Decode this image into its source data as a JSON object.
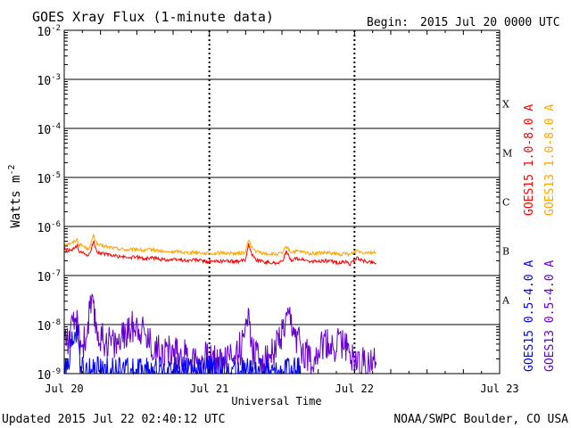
{
  "header": {
    "title": "GOES Xray Flux (1-minute data)",
    "begin_label": "Begin:",
    "begin_value": "2015 Jul 20 0000 UTC"
  },
  "footer": {
    "updated": "Updated 2015 Jul 22 02:40:12 UTC",
    "credit": "NOAA/SWPC Boulder, CO USA"
  },
  "colors": {
    "goes15_long": "#ff0000",
    "goes13_long": "#ffa500",
    "goes15_short": "#0000ff",
    "goes13_short": "#6600cc",
    "grid": "#000000",
    "background": "#ffffff"
  },
  "chart_data": {
    "type": "line",
    "title": "GOES Xray Flux (1-minute data)",
    "xlabel": "Universal Time",
    "ylabel_base": "Watts m",
    "ylabel_exponent": "-2",
    "y_scale": "log",
    "ylim": [
      1e-09,
      0.01
    ],
    "x_unit": "days since 2015 Jul 20 0000 UTC",
    "xlim": [
      0,
      3
    ],
    "x_ticks": [
      {
        "value": 0,
        "label": "Jul 20"
      },
      {
        "value": 1,
        "label": "Jul 21"
      },
      {
        "value": 2,
        "label": "Jul 22"
      },
      {
        "value": 3,
        "label": "Jul 23"
      }
    ],
    "y_ticks": [
      {
        "exp": -2,
        "base": "10",
        "sup": "-2"
      },
      {
        "exp": -3,
        "base": "10",
        "sup": "-3"
      },
      {
        "exp": -4,
        "base": "10",
        "sup": "-4"
      },
      {
        "exp": -5,
        "base": "10",
        "sup": "-5"
      },
      {
        "exp": -6,
        "base": "10",
        "sup": "-6"
      },
      {
        "exp": -7,
        "base": "10",
        "sup": "-7"
      },
      {
        "exp": -8,
        "base": "10",
        "sup": "-8"
      },
      {
        "exp": -9,
        "base": "10",
        "sup": "-9"
      }
    ],
    "flare_classes": [
      {
        "label": "X",
        "exp_low": -4
      },
      {
        "label": "M",
        "exp_low": -5
      },
      {
        "label": "C",
        "exp_low": -6
      },
      {
        "label": "B",
        "exp_low": -7
      },
      {
        "label": "A",
        "exp_low": -8
      }
    ],
    "grid": true,
    "legend": [
      {
        "name": "GOES15 1.0-8.0 A",
        "color_key": "goes15_long"
      },
      {
        "name": "GOES13 1.0-8.0 A",
        "color_key": "goes13_long"
      },
      {
        "name": "GOES15 0.5-4.0 A",
        "color_key": "goes15_short"
      },
      {
        "name": "GOES13 0.5-4.0 A",
        "color_key": "goes13_short"
      }
    ],
    "series": [
      {
        "name": "GOES13 1.0-8.0 A",
        "color_key": "goes13_long",
        "x": [
          0,
          0.05,
          0.09,
          0.1,
          0.12,
          0.16,
          0.18,
          0.2,
          0.23,
          0.27,
          0.35,
          0.45,
          0.5,
          0.55,
          0.6,
          0.7,
          0.8,
          0.85,
          0.9,
          1.0,
          1.1,
          1.2,
          1.25,
          1.27,
          1.29,
          1.32,
          1.38,
          1.45,
          1.5,
          1.53,
          1.56,
          1.6,
          1.65,
          1.7,
          1.8,
          1.9,
          1.94,
          1.97,
          2.02,
          2.05,
          2.1,
          2.15
        ],
        "y": [
          4.5e-07,
          4.5e-07,
          5.5e-07,
          4.3e-07,
          4.2e-07,
          3.5e-07,
          4e-07,
          6.6e-07,
          4.2e-07,
          4e-07,
          3.6e-07,
          3.3e-07,
          3.5e-07,
          3.2e-07,
          3.4e-07,
          3e-07,
          3.1e-07,
          2.9e-07,
          3e-07,
          2.8e-07,
          2.9e-07,
          2.8e-07,
          3e-07,
          5.5e-07,
          3.8e-07,
          3.1e-07,
          2.8e-07,
          2.7e-07,
          2.8e-07,
          3.9e-07,
          3e-07,
          3.1e-07,
          3e-07,
          2.8e-07,
          2.9e-07,
          2.7e-07,
          2.8e-07,
          2.7e-07,
          3.3e-07,
          3e-07,
          3e-07,
          2.9e-07
        ]
      },
      {
        "name": "GOES15 1.0-8.0 A",
        "color_key": "goes15_long",
        "x": [
          0,
          0.05,
          0.09,
          0.1,
          0.12,
          0.16,
          0.18,
          0.2,
          0.23,
          0.27,
          0.35,
          0.45,
          0.5,
          0.55,
          0.6,
          0.7,
          0.8,
          0.85,
          0.9,
          1.0,
          1.1,
          1.2,
          1.25,
          1.27,
          1.29,
          1.32,
          1.38,
          1.45,
          1.5,
          1.53,
          1.56,
          1.6,
          1.65,
          1.7,
          1.8,
          1.9,
          1.94,
          1.97,
          2.02,
          2.05,
          2.1,
          2.15
        ],
        "y": [
          3.4e-07,
          3.2e-07,
          4e-07,
          3e-07,
          2.9e-07,
          2.6e-07,
          2.8e-07,
          5e-07,
          3e-07,
          2.8e-07,
          2.5e-07,
          2.3e-07,
          2.4e-07,
          2.2e-07,
          2.3e-07,
          2.1e-07,
          2.1e-07,
          2e-07,
          2.1e-07,
          1.9e-07,
          2e-07,
          1.9e-07,
          2.1e-07,
          4.6e-07,
          2.8e-07,
          2.1e-07,
          1.9e-07,
          1.8e-07,
          1.9e-07,
          3e-07,
          2.1e-07,
          2.2e-07,
          2.1e-07,
          1.9e-07,
          2e-07,
          1.8e-07,
          1.9e-07,
          1.7e-07,
          2.3e-07,
          2e-07,
          1.9e-07,
          1.8e-07
        ]
      },
      {
        "name": "GOES13 0.5-4.0 A",
        "color_key": "goes13_short",
        "x": [
          0,
          0.03,
          0.06,
          0.08,
          0.1,
          0.12,
          0.15,
          0.18,
          0.2,
          0.22,
          0.25,
          0.3,
          0.35,
          0.4,
          0.45,
          0.5,
          0.55,
          0.6,
          0.65,
          0.7,
          0.8,
          0.9,
          1.0,
          1.05,
          1.1,
          1.15,
          1.2,
          1.24,
          1.26,
          1.28,
          1.3,
          1.35,
          1.4,
          1.45,
          1.5,
          1.55,
          1.6,
          1.65,
          1.7,
          1.75,
          1.8,
          1.85,
          1.9,
          1.95,
          2.0,
          2.05,
          2.1,
          2.15
        ],
        "y": [
          6e-09,
          5e-09,
          8e-09,
          1.3e-08,
          6e-09,
          4e-09,
          5e-09,
          2.5e-08,
          1.8e-08,
          9e-09,
          5e-09,
          5e-09,
          4e-09,
          5e-09,
          8e-09,
          1.1e-08,
          7e-09,
          4e-09,
          3e-09,
          3e-09,
          2.5e-09,
          2e-09,
          2e-09,
          2e-09,
          2e-09,
          2.5e-09,
          3e-09,
          4e-09,
          2.5e-08,
          8e-09,
          3e-09,
          2e-09,
          2e-09,
          3e-09,
          6e-09,
          1.2e-08,
          5e-09,
          3e-09,
          2e-09,
          3e-09,
          4e-09,
          3e-09,
          5e-09,
          3e-09,
          2e-09,
          1.8e-09,
          1.6e-09,
          1.5e-09
        ]
      },
      {
        "name": "GOES15 0.5-4.0 A",
        "color_key": "goes15_short",
        "x": [
          0,
          0.03,
          0.05,
          0.07,
          0.09,
          0.1,
          0.11,
          0.12,
          0.13,
          0.15,
          0.17,
          0.2,
          0.21,
          0.22,
          0.3,
          0.32,
          0.4,
          0.45,
          0.5,
          0.55,
          0.6,
          0.65,
          0.7,
          0.8,
          1.2,
          1.25,
          1.28,
          1.3,
          1.32,
          1.6,
          1.62,
          1.64
        ],
        "y": [
          1e-09,
          1e-09,
          3e-09,
          6e-09,
          7e-09,
          6e-09,
          1.5e-09,
          1e-09,
          1e-09,
          1e-09,
          1e-09,
          1e-09,
          1.1e-09,
          1e-09,
          1e-09,
          1e-09,
          1e-09,
          1e-09,
          1e-09,
          1e-09,
          1e-09,
          1e-09,
          1e-09,
          1e-09,
          1e-09,
          1e-09,
          1e-09,
          1e-09,
          1e-09,
          1e-09,
          1e-09,
          1e-09
        ]
      }
    ]
  }
}
